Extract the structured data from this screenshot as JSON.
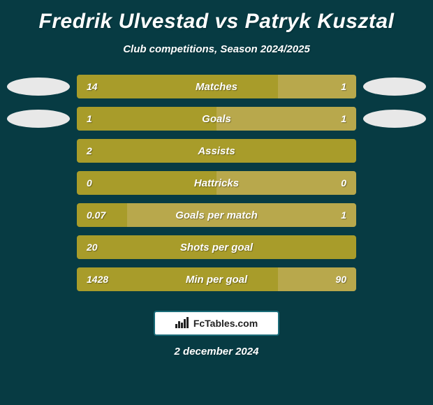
{
  "title": "Fredrik Ulvestad vs Patryk Kusztal",
  "subtitle": "Club competitions, Season 2024/2025",
  "date": "2 december 2024",
  "colors": {
    "background": "#073b43",
    "left_bar": "#a89c2a",
    "right_bar": "#b8a84c",
    "left_bubble": "#e8e8e8",
    "right_bubble": "#e8e8e8",
    "title_text": "#ffffff",
    "subtitle_text": "#ffffff",
    "bar_label_text": "#ffffff",
    "value_text": "#ffffff",
    "badge_bg": "#ffffff",
    "badge_border": "#1a6b78",
    "badge_text": "#222222"
  },
  "footer": {
    "brand": "FcTables.com"
  },
  "stats": [
    {
      "label": "Matches",
      "left_val": "14",
      "right_val": "1",
      "left_pct": 72,
      "right_pct": 28,
      "show_bubbles": true
    },
    {
      "label": "Goals",
      "left_val": "1",
      "right_val": "1",
      "left_pct": 50,
      "right_pct": 50,
      "show_bubbles": true
    },
    {
      "label": "Assists",
      "left_val": "2",
      "right_val": "",
      "left_pct": 100,
      "right_pct": 0,
      "show_bubbles": false
    },
    {
      "label": "Hattricks",
      "left_val": "0",
      "right_val": "0",
      "left_pct": 50,
      "right_pct": 50,
      "show_bubbles": false
    },
    {
      "label": "Goals per match",
      "left_val": "0.07",
      "right_val": "1",
      "left_pct": 18,
      "right_pct": 82,
      "show_bubbles": false
    },
    {
      "label": "Shots per goal",
      "left_val": "20",
      "right_val": "",
      "left_pct": 100,
      "right_pct": 0,
      "show_bubbles": false
    },
    {
      "label": "Min per goal",
      "left_val": "1428",
      "right_val": "90",
      "left_pct": 72,
      "right_pct": 28,
      "show_bubbles": false
    }
  ]
}
